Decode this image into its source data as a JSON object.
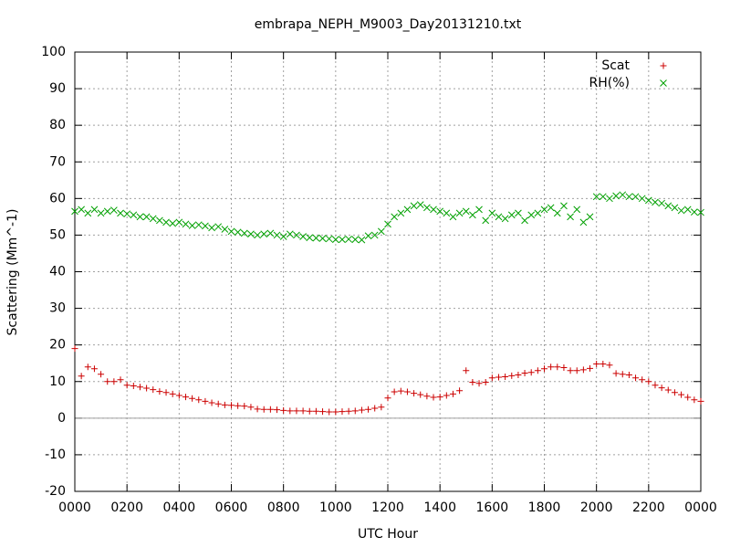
{
  "chart_data": {
    "type": "scatter",
    "title": "embrapa_NEPH_M9003_Day20131210.txt",
    "x_label": "UTC Hour",
    "y_label": "Scattering (Mm^-1)",
    "x": [
      0,
      0.25,
      0.5,
      0.75,
      1,
      1.25,
      1.5,
      1.75,
      2,
      2.25,
      2.5,
      2.75,
      3,
      3.25,
      3.5,
      3.75,
      4,
      4.25,
      4.5,
      4.75,
      5,
      5.25,
      5.5,
      5.75,
      6,
      6.25,
      6.5,
      6.75,
      7,
      7.25,
      7.5,
      7.75,
      8,
      8.25,
      8.5,
      8.75,
      9,
      9.25,
      9.5,
      9.75,
      10,
      10.25,
      10.5,
      10.75,
      11,
      11.25,
      11.5,
      11.75,
      12,
      12.25,
      12.5,
      12.75,
      13,
      13.25,
      13.5,
      13.75,
      14,
      14.25,
      14.5,
      14.75,
      15,
      15.25,
      15.5,
      15.75,
      16,
      16.25,
      16.5,
      16.75,
      17,
      17.25,
      17.5,
      17.75,
      18,
      18.25,
      18.5,
      18.75,
      19,
      19.25,
      19.5,
      19.75,
      20,
      20.25,
      20.5,
      20.75,
      21,
      21.25,
      21.5,
      21.75,
      22,
      22.25,
      22.5,
      22.75,
      23,
      23.25,
      23.5,
      23.75,
      24
    ],
    "series": [
      {
        "name": "Scat",
        "color": "#cc0000",
        "marker": "plus",
        "values": [
          19,
          11.5,
          14,
          13.5,
          12,
          10,
          10,
          10.5,
          9,
          8.8,
          8.5,
          8.2,
          7.8,
          7.3,
          7,
          6.6,
          6.2,
          5.8,
          5.4,
          5,
          4.6,
          4.2,
          3.9,
          3.6,
          3.5,
          3.4,
          3.3,
          3,
          2.5,
          2.4,
          2.4,
          2.3,
          2.1,
          2,
          2,
          2,
          1.9,
          1.9,
          1.8,
          1.7,
          1.7,
          1.8,
          1.9,
          2,
          2.2,
          2.4,
          2.7,
          3,
          5.5,
          7.2,
          7.4,
          7.2,
          6.8,
          6.4,
          6,
          5.7,
          5.8,
          6.2,
          6.6,
          7.5,
          13,
          9.8,
          9.5,
          9.8,
          11,
          11.2,
          11.3,
          11.6,
          11.8,
          12.3,
          12.5,
          13,
          13.5,
          14,
          14,
          13.8,
          13,
          13,
          13.2,
          13.6,
          14.8,
          14.8,
          14.5,
          12.2,
          12,
          11.8,
          11,
          10.5,
          10,
          9,
          8.3,
          7.7,
          7,
          6.4,
          5.7,
          5,
          4.6
        ]
      },
      {
        "name": "RH(%)",
        "color": "#00a000",
        "marker": "cross",
        "values": [
          56.5,
          57,
          56,
          57,
          56,
          56.5,
          56.8,
          56,
          55.8,
          55.5,
          55,
          55,
          54.5,
          54,
          53.5,
          53.2,
          53.5,
          53,
          52.6,
          52.8,
          52.5,
          52,
          52.3,
          51.6,
          51,
          50.8,
          50.5,
          50.3,
          50,
          50.3,
          50.5,
          50,
          49.6,
          50.3,
          50,
          49.6,
          49.3,
          49.2,
          49.1,
          49,
          48.8,
          48.8,
          48.9,
          48.8,
          48.7,
          49.8,
          50,
          51,
          53,
          55,
          56,
          57,
          58,
          58.3,
          57.5,
          57,
          56.5,
          56,
          55,
          56,
          56.5,
          55.5,
          57,
          54,
          56,
          55,
          54.5,
          55.5,
          56,
          54,
          55.5,
          56,
          57,
          57.5,
          56,
          58,
          55,
          57,
          53.5,
          55,
          60.5,
          60.5,
          60,
          60.7,
          61,
          60.5,
          60.5,
          60,
          59.5,
          59,
          58.7,
          58,
          57.5,
          56.7,
          57,
          56.3,
          56.2
        ]
      }
    ],
    "xlim": [
      0,
      24
    ],
    "xticks": [
      {
        "value": 0,
        "label": "0000"
      },
      {
        "value": 2,
        "label": "0200"
      },
      {
        "value": 4,
        "label": "0400"
      },
      {
        "value": 6,
        "label": "0600"
      },
      {
        "value": 8,
        "label": "0800"
      },
      {
        "value": 10,
        "label": "1000"
      },
      {
        "value": 12,
        "label": "1200"
      },
      {
        "value": 14,
        "label": "1400"
      },
      {
        "value": 16,
        "label": "1600"
      },
      {
        "value": 18,
        "label": "1800"
      },
      {
        "value": 20,
        "label": "2000"
      },
      {
        "value": 22,
        "label": "2200"
      },
      {
        "value": 24,
        "label": "0000"
      }
    ],
    "ylim": [
      -20,
      100
    ],
    "yticks": [
      -20,
      -10,
      0,
      10,
      20,
      30,
      40,
      50,
      60,
      70,
      80,
      90,
      100
    ],
    "grid": true,
    "zero_axis": true,
    "legend": "top-right"
  }
}
